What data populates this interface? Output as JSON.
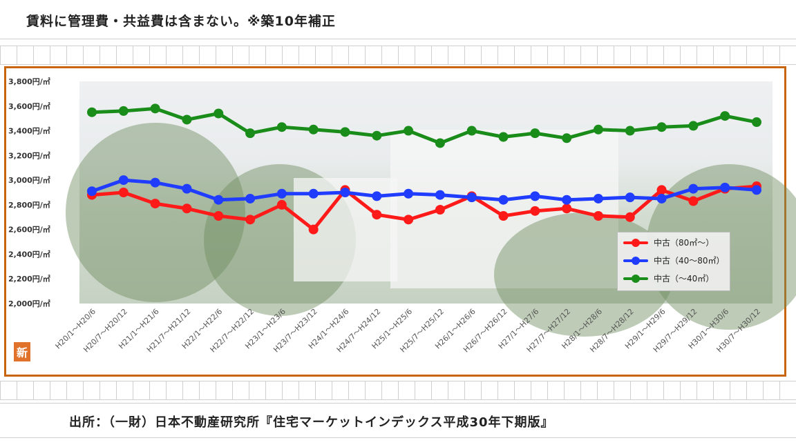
{
  "header": {
    "note": "賃料に管理費・共益費は含まない。※築10年補正"
  },
  "footer": {
    "source": "出所：（一財）日本不動産研究所『住宅マーケットインデックス平成30年下期版』"
  },
  "logo": {
    "text": "新"
  },
  "colors": {
    "frame": "#c8650a",
    "red": "#ff1a1a",
    "blue": "#1f3cff",
    "green": "#1a8c1a"
  },
  "chart_data": {
    "type": "line",
    "title": "",
    "xlabel": "",
    "ylabel": "",
    "ylim": [
      2000,
      3800
    ],
    "yticks": [
      "2,000円/㎡",
      "2,200円/㎡",
      "2,400円/㎡",
      "2,600円/㎡",
      "2,800円/㎡",
      "3,000円/㎡",
      "3,200円/㎡",
      "3,400円/㎡",
      "3,600円/㎡",
      "3,800円/㎡"
    ],
    "ytick_values": [
      2000,
      2200,
      2400,
      2600,
      2800,
      3000,
      3200,
      3400,
      3600,
      3800
    ],
    "categories": [
      "H20/1～H20/6",
      "H20/7～H20/12",
      "H21/1～H21/6",
      "H21/7～H21/12",
      "H22/1～H22/6",
      "H22/7～H22/12",
      "H23/1～H23/6",
      "H23/7～H23/12",
      "H24/1～H24/6",
      "H24/7～H24/12",
      "H25/1～H25/6",
      "H25/7～H25/12",
      "H26/1～H26/6",
      "H26/7～H26/12",
      "H27/1～H27/6",
      "H27/7～H27/12",
      "H28/1～H28/6",
      "H28/7～H28/12",
      "H29/1～H29/6",
      "H29/7～H29/12",
      "H30/1～H30/6",
      "H30/7～H30/12"
    ],
    "legend_position": "bottom-right",
    "series": [
      {
        "name": "中古（80㎡～）",
        "color": "#ff1a1a",
        "values": [
          2880,
          2900,
          2810,
          2770,
          2710,
          2680,
          2800,
          2600,
          2920,
          2720,
          2680,
          2760,
          2870,
          2710,
          2750,
          2770,
          2710,
          2700,
          2920,
          2830,
          2930,
          2950
        ]
      },
      {
        "name": "中古（40～80㎡）",
        "color": "#1f3cff",
        "values": [
          2910,
          3000,
          2980,
          2930,
          2840,
          2850,
          2890,
          2890,
          2900,
          2870,
          2890,
          2880,
          2860,
          2840,
          2870,
          2840,
          2850,
          2860,
          2850,
          2930,
          2940,
          2920
        ]
      },
      {
        "name": "中古（～40㎡）",
        "color": "#1a8c1a",
        "values": [
          3550,
          3560,
          3580,
          3490,
          3540,
          3380,
          3430,
          3410,
          3390,
          3360,
          3400,
          3300,
          3400,
          3350,
          3380,
          3340,
          3410,
          3400,
          3430,
          3440,
          3520,
          3470
        ]
      }
    ]
  }
}
